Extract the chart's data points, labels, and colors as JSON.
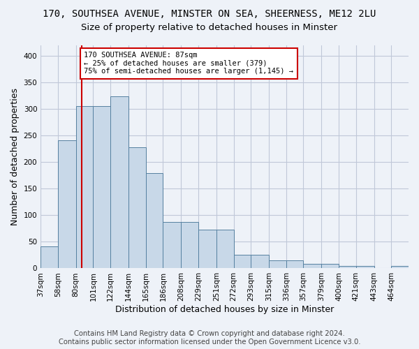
{
  "title1": "170, SOUTHSEA AVENUE, MINSTER ON SEA, SHEERNESS, ME12 2LU",
  "title2": "Size of property relative to detached houses in Minster",
  "xlabel": "Distribution of detached houses by size in Minster",
  "ylabel": "Number of detached properties",
  "footer1": "Contains HM Land Registry data © Crown copyright and database right 2024.",
  "footer2": "Contains public sector information licensed under the Open Government Licence v3.0.",
  "bar_heights": [
    42,
    241,
    305,
    305,
    324,
    228,
    180,
    88,
    88,
    73,
    73,
    25,
    25,
    15,
    15,
    9,
    9,
    4,
    4,
    0,
    4
  ],
  "tick_positions": [
    37,
    58,
    80,
    101,
    122,
    144,
    165,
    186,
    208,
    229,
    251,
    272,
    293,
    315,
    336,
    357,
    379,
    400,
    421,
    443,
    464
  ],
  "tick_labels": [
    "37sqm",
    "58sqm",
    "80sqm",
    "101sqm",
    "122sqm",
    "144sqm",
    "165sqm",
    "186sqm",
    "208sqm",
    "229sqm",
    "251sqm",
    "272sqm",
    "293sqm",
    "315sqm",
    "336sqm",
    "357sqm",
    "379sqm",
    "400sqm",
    "421sqm",
    "443sqm",
    "464sqm"
  ],
  "bar_color": "#c8d8e8",
  "bar_edge_color": "#5580a0",
  "property_size": 87,
  "red_line_color": "#cc0000",
  "annotation_text": "170 SOUTHSEA AVENUE: 87sqm\n← 25% of detached houses are smaller (379)\n75% of semi-detached houses are larger (1,145) →",
  "annotation_box_color": "#cc0000",
  "ylim": [
    0,
    420
  ],
  "yticks": [
    0,
    50,
    100,
    150,
    200,
    250,
    300,
    350,
    400
  ],
  "grid_color": "#c0c8d8",
  "bg_color": "#eef2f8",
  "title1_fontsize": 10,
  "title2_fontsize": 9.5,
  "axis_label_fontsize": 9,
  "tick_fontsize": 7.5,
  "footer_fontsize": 7.2
}
